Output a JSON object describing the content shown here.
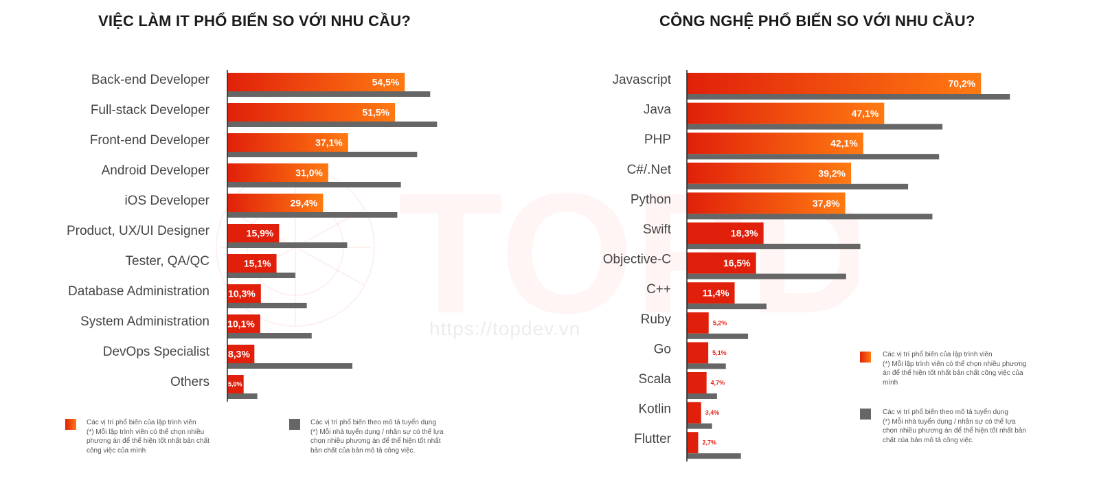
{
  "colors": {
    "primary_start": "#e0200a",
    "primary_end": "#ff7a12",
    "secondary": "#666666",
    "label": "#444444",
    "value_on_bar": "#ffffff",
    "value_off_bar": "#e8241a"
  },
  "watermark": {
    "brand": "TOPDev",
    "url": "https://topdev.vn"
  },
  "left": {
    "title": "VIỆC LÀM IT PHỔ BIẾN SO VỚI  NHU CẦU?",
    "legend": {
      "primary": [
        "Các vị trí phổ biến của lập trình viên",
        "(*) Mỗi lập trình viên có thể chọn nhiều",
        "phương án để thể hiện tốt nhất bản chất",
        "công việc của mình"
      ],
      "secondary": [
        "Các vị trí phổ biến theo mô tả tuyển dụng",
        "(*) Mỗi nhà tuyển dụng / nhân sự có thể lựa",
        "chọn nhiều phương án để thể hiện tốt nhất",
        "bản chất của bản mô tả công việc."
      ]
    }
  },
  "right": {
    "title": "CÔNG NGHỆ PHỔ BIẾN SO VỚI  NHU CẦU?",
    "legend": {
      "primary": [
        "Các vị trí phổ biến của lập trình viên",
        "(*) Mỗi lập trình viên có thể chọn nhiều phương",
        "án để thể hiện tốt nhất bản chất công việc của",
        "mình"
      ],
      "secondary": [
        "Các vị trí phổ biến theo mô tả tuyển dụng",
        "(*) Mỗi nhà tuyển dụng / nhân sự có thể lựa",
        "chọn nhiều phương án để thể hiện tốt nhất bản",
        "chất của bản mô tả công việc."
      ]
    }
  },
  "chart_data": [
    {
      "type": "bar",
      "orientation": "horizontal",
      "title": "VIỆC LÀM IT PHỔ BIẾN SO VỚI  NHU CẦU?",
      "categories": [
        "Back-end Developer",
        "Full-stack Developer",
        "Front-end Developer",
        "Android Developer",
        "iOS Developer",
        "Product, UX/UI Designer",
        "Tester, QA/QC",
        "Database Administration",
        "System Administration",
        "DevOps Specialist",
        "Others"
      ],
      "series": [
        {
          "name": "Các vị trí phổ biến của lập trình viên",
          "values": [
            54.5,
            51.5,
            37.1,
            31.0,
            29.4,
            15.9,
            15.1,
            10.3,
            10.1,
            8.3,
            5.0
          ],
          "labels": [
            "54,5%",
            "51,5%",
            "37,1%",
            "31,0%",
            "29,4%",
            "15,9%",
            "15,1%",
            "10,3%",
            "10,1%",
            "8,3%",
            "5,0%"
          ]
        },
        {
          "name": "Các vị trí phổ biến theo mô tả tuyển dụng",
          "values": [
            62.3,
            64.4,
            58.3,
            53.3,
            52.2,
            36.8,
            20.9,
            24.4,
            25.9,
            38.4,
            9.2
          ]
        }
      ],
      "grid": false,
      "legend_position": "bottom"
    },
    {
      "type": "bar",
      "orientation": "horizontal",
      "title": "CÔNG NGHỆ PHỔ BIẾN SO VỚI  NHU CẦU?",
      "categories": [
        "Javascript",
        "Java",
        "PHP",
        "C#/.Net",
        "Python",
        "Swift",
        "Objective-C",
        "C++",
        "Ruby",
        "Go",
        "Scala",
        "Kotlin",
        "Flutter"
      ],
      "series": [
        {
          "name": "Các vị trí phổ biến của lập trình viên",
          "values": [
            70.2,
            47.1,
            42.1,
            39.2,
            37.8,
            18.3,
            16.5,
            11.4,
            5.2,
            5.1,
            4.7,
            3.4,
            2.7
          ],
          "labels": [
            "70,2%",
            "47,1%",
            "42,1%",
            "39,2%",
            "37,8%",
            "18,3%",
            "16,5%",
            "11,4%",
            "5,2%",
            "5,1%",
            "4,7%",
            "3,4%",
            "2,7%"
          ]
        },
        {
          "name": "Các vị trí phổ biến theo mô tả tuyển dụng",
          "values": [
            77.1,
            61.0,
            60.2,
            52.8,
            58.6,
            41.4,
            38.0,
            19.0,
            14.6,
            9.3,
            7.2,
            6.0,
            12.9
          ]
        }
      ],
      "grid": false,
      "legend_position": "right"
    }
  ]
}
